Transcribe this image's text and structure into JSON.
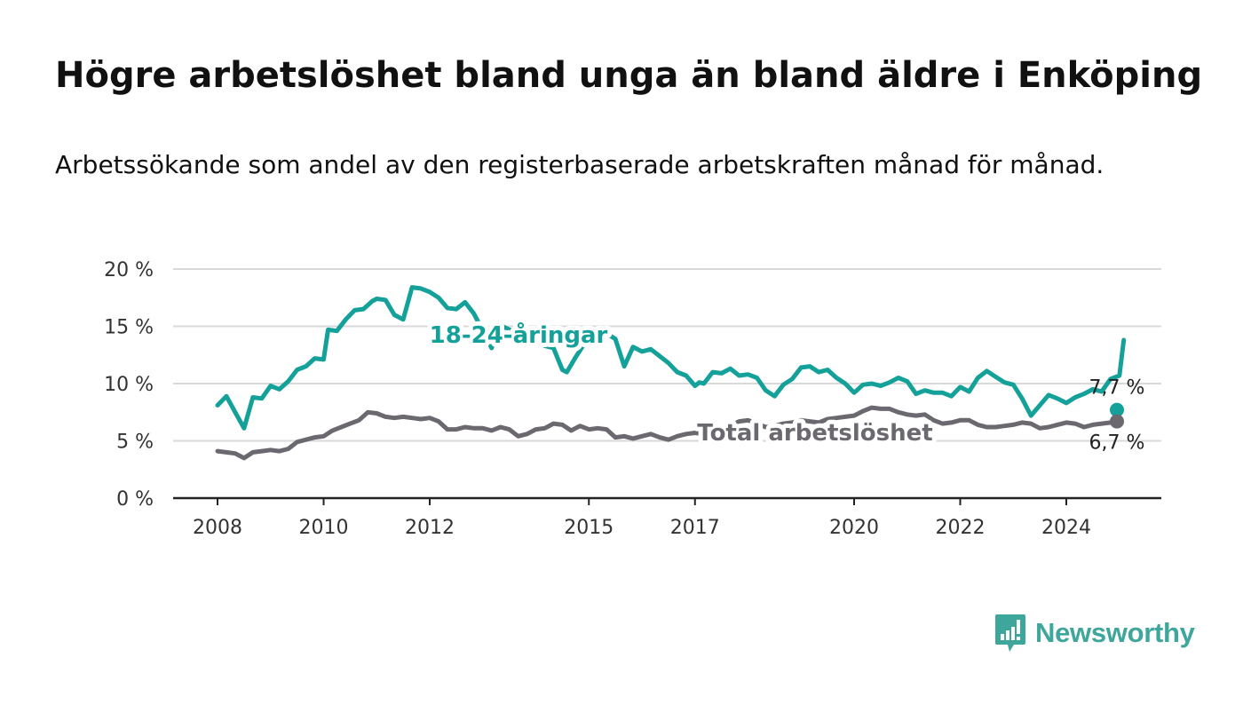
{
  "title": "Högre arbetslöshet bland unga än bland äldre i Enköping",
  "subtitle": "Arbetssökande som andel av den registerbaserade arbetskraften månad för månad.",
  "brand": "Newsworthy",
  "colors": {
    "youth": "#14a199",
    "total": "#6b6870",
    "grid": "#d9d9d9",
    "axis": "#222222",
    "brand": "#3fa69b"
  },
  "chart_data": {
    "type": "line",
    "xlim": [
      "2008-01",
      "2025-03"
    ],
    "ylim": [
      0,
      20
    ],
    "x_ticks": [
      {
        "date": "2008-01",
        "label": "2008"
      },
      {
        "date": "2010-01",
        "label": "2010"
      },
      {
        "date": "2012-01",
        "label": "2012"
      },
      {
        "date": "2015-01",
        "label": "2015"
      },
      {
        "date": "2017-01",
        "label": "2017"
      },
      {
        "date": "2020-01",
        "label": "2020"
      },
      {
        "date": "2022-01",
        "label": "2022"
      },
      {
        "date": "2024-01",
        "label": "2024"
      }
    ],
    "y_ticks": [
      {
        "value": 0,
        "label": "0 %"
      },
      {
        "value": 5,
        "label": "5 %"
      },
      {
        "value": 10,
        "label": "10 %"
      },
      {
        "value": 15,
        "label": "15 %"
      },
      {
        "value": 20,
        "label": "20 %"
      }
    ],
    "series": [
      {
        "name": "18-24-åringar",
        "end_label": "7,7 %",
        "points": [
          [
            "2008-01",
            8.1
          ],
          [
            "2008-03",
            8.9
          ],
          [
            "2008-05",
            7.5
          ],
          [
            "2008-07",
            6.1
          ],
          [
            "2008-09",
            8.8
          ],
          [
            "2008-11",
            8.7
          ],
          [
            "2009-01",
            9.8
          ],
          [
            "2009-03",
            9.5
          ],
          [
            "2009-05",
            10.2
          ],
          [
            "2009-07",
            11.2
          ],
          [
            "2009-09",
            11.5
          ],
          [
            "2009-11",
            12.2
          ],
          [
            "2010-01",
            12.1
          ],
          [
            "2010-02",
            14.7
          ],
          [
            "2010-04",
            14.6
          ],
          [
            "2010-06",
            15.6
          ],
          [
            "2010-08",
            16.4
          ],
          [
            "2010-10",
            16.5
          ],
          [
            "2010-12",
            17.2
          ],
          [
            "2011-01",
            17.4
          ],
          [
            "2011-03",
            17.3
          ],
          [
            "2011-05",
            16.0
          ],
          [
            "2011-07",
            15.6
          ],
          [
            "2011-09",
            18.4
          ],
          [
            "2011-11",
            18.3
          ],
          [
            "2012-01",
            18.0
          ],
          [
            "2012-03",
            17.5
          ],
          [
            "2012-05",
            16.6
          ],
          [
            "2012-07",
            16.5
          ],
          [
            "2012-09",
            17.1
          ],
          [
            "2012-11",
            16.1
          ],
          [
            "2013-01",
            14.6
          ],
          [
            "2013-03",
            13.1
          ],
          [
            "2013-05",
            15.1
          ],
          [
            "2013-07",
            14.7
          ],
          [
            "2013-09",
            14.6
          ],
          [
            "2013-11",
            14.5
          ],
          [
            "2014-01",
            14.3
          ],
          [
            "2014-03",
            13.3
          ],
          [
            "2014-05",
            13.1
          ],
          [
            "2014-07",
            11.2
          ],
          [
            "2014-08",
            11.0
          ],
          [
            "2014-10",
            12.3
          ],
          [
            "2014-12",
            13.5
          ],
          [
            "2015-01",
            14.2
          ],
          [
            "2015-04",
            14.6
          ],
          [
            "2015-07",
            13.9
          ],
          [
            "2015-09",
            11.5
          ],
          [
            "2015-11",
            13.2
          ],
          [
            "2016-01",
            12.8
          ],
          [
            "2016-03",
            13.0
          ],
          [
            "2016-05",
            12.4
          ],
          [
            "2016-07",
            11.8
          ],
          [
            "2016-09",
            11.0
          ],
          [
            "2016-11",
            10.7
          ],
          [
            "2017-01",
            9.8
          ],
          [
            "2017-02",
            10.1
          ],
          [
            "2017-03",
            10.0
          ],
          [
            "2017-05",
            11.0
          ],
          [
            "2017-07",
            10.9
          ],
          [
            "2017-09",
            11.3
          ],
          [
            "2017-11",
            10.7
          ],
          [
            "2018-01",
            10.8
          ],
          [
            "2018-03",
            10.5
          ],
          [
            "2018-05",
            9.4
          ],
          [
            "2018-07",
            8.9
          ],
          [
            "2018-09",
            9.9
          ],
          [
            "2018-11",
            10.4
          ],
          [
            "2019-01",
            11.4
          ],
          [
            "2019-03",
            11.5
          ],
          [
            "2019-05",
            11.0
          ],
          [
            "2019-07",
            11.2
          ],
          [
            "2019-09",
            10.5
          ],
          [
            "2019-11",
            10.0
          ],
          [
            "2020-01",
            9.2
          ],
          [
            "2020-03",
            9.9
          ],
          [
            "2020-05",
            10.0
          ],
          [
            "2020-07",
            9.8
          ],
          [
            "2020-09",
            10.1
          ],
          [
            "2020-11",
            10.5
          ],
          [
            "2021-01",
            10.2
          ],
          [
            "2021-03",
            9.1
          ],
          [
            "2021-05",
            9.4
          ],
          [
            "2021-07",
            9.2
          ],
          [
            "2021-09",
            9.2
          ],
          [
            "2021-11",
            8.9
          ],
          [
            "2022-01",
            9.7
          ],
          [
            "2022-03",
            9.3
          ],
          [
            "2022-05",
            10.5
          ],
          [
            "2022-07",
            11.1
          ],
          [
            "2022-09",
            10.6
          ],
          [
            "2022-11",
            10.1
          ],
          [
            "2023-01",
            9.9
          ],
          [
            "2023-03",
            8.7
          ],
          [
            "2023-05",
            7.2
          ],
          [
            "2023-07",
            8.1
          ],
          [
            "2023-09",
            9.0
          ],
          [
            "2023-11",
            8.7
          ],
          [
            "2024-01",
            8.3
          ],
          [
            "2024-03",
            8.8
          ],
          [
            "2024-05",
            9.1
          ],
          [
            "2024-07",
            9.5
          ],
          [
            "2024-09",
            9.3
          ],
          [
            "2024-11",
            10.4
          ],
          [
            "2025-01",
            10.7
          ],
          [
            "2025-02",
            13.8
          ],
          [
            "2025-03",
            7.7
          ]
        ]
      },
      {
        "name": "Total arbetslöshet",
        "end_label": "6,7 %",
        "points": [
          [
            "2008-01",
            4.1
          ],
          [
            "2008-03",
            4.0
          ],
          [
            "2008-05",
            3.9
          ],
          [
            "2008-07",
            3.5
          ],
          [
            "2008-09",
            4.0
          ],
          [
            "2008-11",
            4.1
          ],
          [
            "2009-01",
            4.2
          ],
          [
            "2009-03",
            4.1
          ],
          [
            "2009-05",
            4.3
          ],
          [
            "2009-07",
            4.9
          ],
          [
            "2009-09",
            5.1
          ],
          [
            "2009-11",
            5.3
          ],
          [
            "2010-01",
            5.4
          ],
          [
            "2010-03",
            5.9
          ],
          [
            "2010-05",
            6.2
          ],
          [
            "2010-07",
            6.5
          ],
          [
            "2010-09",
            6.8
          ],
          [
            "2010-11",
            7.5
          ],
          [
            "2011-01",
            7.4
          ],
          [
            "2011-03",
            7.1
          ],
          [
            "2011-05",
            7.0
          ],
          [
            "2011-07",
            7.1
          ],
          [
            "2011-09",
            7.0
          ],
          [
            "2011-11",
            6.9
          ],
          [
            "2012-01",
            7.0
          ],
          [
            "2012-03",
            6.7
          ],
          [
            "2012-05",
            6.0
          ],
          [
            "2012-07",
            6.0
          ],
          [
            "2012-09",
            6.2
          ],
          [
            "2012-11",
            6.1
          ],
          [
            "2013-01",
            6.1
          ],
          [
            "2013-03",
            5.9
          ],
          [
            "2013-05",
            6.2
          ],
          [
            "2013-07",
            6.0
          ],
          [
            "2013-09",
            5.4
          ],
          [
            "2013-11",
            5.6
          ],
          [
            "2014-01",
            6.0
          ],
          [
            "2014-03",
            6.1
          ],
          [
            "2014-05",
            6.5
          ],
          [
            "2014-07",
            6.4
          ],
          [
            "2014-09",
            5.9
          ],
          [
            "2014-11",
            6.3
          ],
          [
            "2015-01",
            6.0
          ],
          [
            "2015-03",
            6.1
          ],
          [
            "2015-05",
            6.0
          ],
          [
            "2015-07",
            5.3
          ],
          [
            "2015-09",
            5.4
          ],
          [
            "2015-11",
            5.2
          ],
          [
            "2016-01",
            5.4
          ],
          [
            "2016-03",
            5.6
          ],
          [
            "2016-05",
            5.3
          ],
          [
            "2016-07",
            5.1
          ],
          [
            "2016-09",
            5.4
          ],
          [
            "2016-11",
            5.6
          ],
          [
            "2017-01",
            5.7
          ],
          [
            "2017-03",
            5.6
          ],
          [
            "2017-05",
            5.9
          ],
          [
            "2017-07",
            6.1
          ],
          [
            "2017-09",
            6.3
          ],
          [
            "2017-11",
            6.7
          ],
          [
            "2018-01",
            6.8
          ],
          [
            "2018-03",
            6.5
          ],
          [
            "2018-05",
            6.2
          ],
          [
            "2018-07",
            6.3
          ],
          [
            "2018-09",
            6.5
          ],
          [
            "2018-11",
            6.6
          ],
          [
            "2019-01",
            6.8
          ],
          [
            "2019-03",
            6.7
          ],
          [
            "2019-05",
            6.6
          ],
          [
            "2019-07",
            6.9
          ],
          [
            "2019-09",
            7.0
          ],
          [
            "2019-11",
            7.1
          ],
          [
            "2020-01",
            7.2
          ],
          [
            "2020-03",
            7.6
          ],
          [
            "2020-05",
            7.9
          ],
          [
            "2020-07",
            7.8
          ],
          [
            "2020-09",
            7.8
          ],
          [
            "2020-11",
            7.5
          ],
          [
            "2021-01",
            7.3
          ],
          [
            "2021-03",
            7.2
          ],
          [
            "2021-05",
            7.3
          ],
          [
            "2021-07",
            6.8
          ],
          [
            "2021-09",
            6.5
          ],
          [
            "2021-11",
            6.6
          ],
          [
            "2022-01",
            6.8
          ],
          [
            "2022-03",
            6.8
          ],
          [
            "2022-05",
            6.4
          ],
          [
            "2022-07",
            6.2
          ],
          [
            "2022-09",
            6.2
          ],
          [
            "2022-11",
            6.3
          ],
          [
            "2023-01",
            6.4
          ],
          [
            "2023-03",
            6.6
          ],
          [
            "2023-05",
            6.5
          ],
          [
            "2023-07",
            6.1
          ],
          [
            "2023-09",
            6.2
          ],
          [
            "2023-11",
            6.4
          ],
          [
            "2024-01",
            6.6
          ],
          [
            "2024-03",
            6.5
          ],
          [
            "2024-05",
            6.2
          ],
          [
            "2024-07",
            6.4
          ],
          [
            "2024-09",
            6.5
          ],
          [
            "2024-11",
            6.6
          ],
          [
            "2025-01",
            6.7
          ],
          [
            "2025-03",
            6.7
          ]
        ]
      }
    ]
  }
}
